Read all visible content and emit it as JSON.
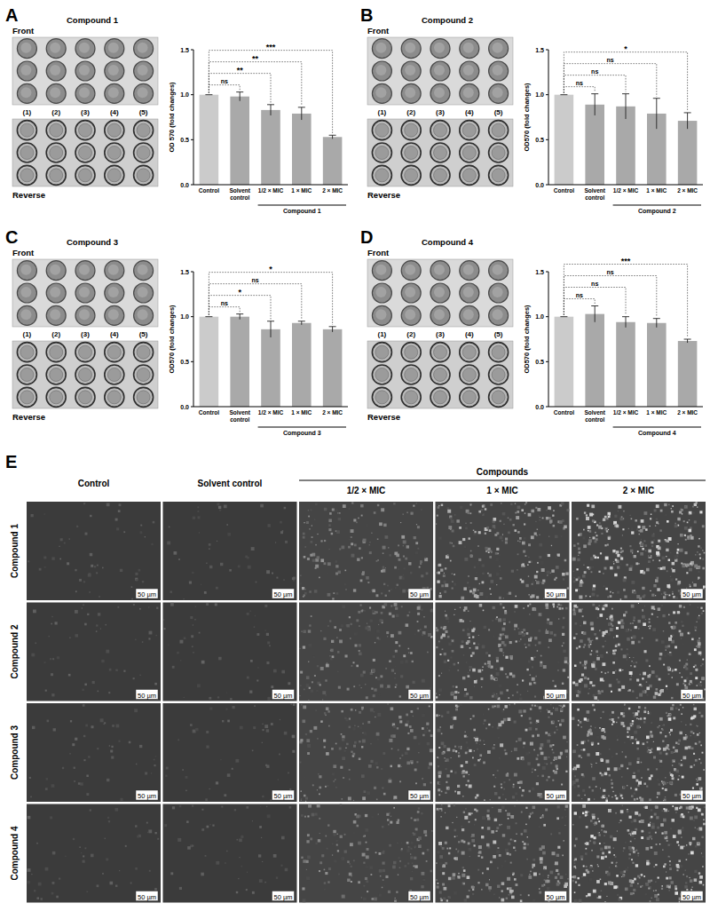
{
  "chart_data": [
    {
      "type": "bar",
      "letter": "A",
      "title": "Compound 1",
      "photo_front": "Front",
      "photo_reverse": "Reverse",
      "well_labels": [
        "(1)",
        "(2)",
        "(3)",
        "(4)",
        "(5)"
      ],
      "y_label": "OD 570 (fold changes)",
      "categories": [
        "Control",
        "Solvent control",
        "1/2 × MIC",
        "1 × MIC",
        "2 × MIC"
      ],
      "values": [
        1.0,
        0.98,
        0.83,
        0.79,
        0.53
      ],
      "errors": [
        0,
        0.05,
        0.06,
        0.07,
        0.02
      ],
      "colors": [
        "#cbcbcb",
        "#a9a9a9",
        "#a9a9a9",
        "#a9a9a9",
        "#a9a9a9"
      ],
      "group_label": "Compound 1",
      "ylim": [
        0,
        1.5
      ],
      "yticks": [
        {
          "value": 0,
          "label": "0.0"
        },
        0.5,
        {
          "value": 1,
          "label": "1.0"
        },
        1.5
      ],
      "significance": [
        {
          "from": 0,
          "to": 1,
          "label": "ns"
        },
        {
          "from": 0,
          "to": 2,
          "label": "**"
        },
        {
          "from": 0,
          "to": 3,
          "label": "**"
        },
        {
          "from": 0,
          "to": 4,
          "label": "***"
        }
      ]
    },
    {
      "type": "bar",
      "letter": "B",
      "title": "Compound 2",
      "photo_front": "Front",
      "photo_reverse": "Reverse",
      "well_labels": [
        "(1)",
        "(2)",
        "(3)",
        "(4)",
        "(5)"
      ],
      "y_label": "OD570 (fold changes)",
      "categories": [
        "Control",
        "Solvent control",
        "1/2 × MIC",
        "1 × MIC",
        "2 × MIC"
      ],
      "values": [
        1.0,
        0.89,
        0.87,
        0.79,
        0.71
      ],
      "errors": [
        0,
        0.12,
        0.14,
        0.17,
        0.09
      ],
      "colors": [
        "#cbcbcb",
        "#a9a9a9",
        "#a9a9a9",
        "#a9a9a9",
        "#a9a9a9"
      ],
      "group_label": "Compound 2",
      "ylim": [
        0,
        1.5
      ],
      "yticks": [
        {
          "value": 0,
          "label": "0.0"
        },
        0.5,
        {
          "value": 1,
          "label": "1.0"
        },
        1.5
      ],
      "significance": [
        {
          "from": 0,
          "to": 1,
          "label": "ns"
        },
        {
          "from": 0,
          "to": 2,
          "label": "ns"
        },
        {
          "from": 0,
          "to": 3,
          "label": "ns"
        },
        {
          "from": 0,
          "to": 4,
          "label": "*"
        }
      ]
    },
    {
      "type": "bar",
      "letter": "C",
      "title": "Compound 3",
      "photo_front": "Front",
      "photo_reverse": "Reverse",
      "well_labels": [
        "(1)",
        "(2)",
        "(3)",
        "(4)",
        "(5)"
      ],
      "y_label": "OD570 (fold changes)",
      "categories": [
        "Control",
        "Solvent control",
        "1/2 × MIC",
        "1 × MIC",
        "2 × MIC"
      ],
      "values": [
        1.0,
        1.0,
        0.86,
        0.93,
        0.86
      ],
      "errors": [
        0,
        0.03,
        0.09,
        0.02,
        0.03
      ],
      "colors": [
        "#cbcbcb",
        "#a9a9a9",
        "#a9a9a9",
        "#a9a9a9",
        "#a9a9a9"
      ],
      "group_label": "Compound 3",
      "ylim": [
        0,
        1.5
      ],
      "yticks": [
        {
          "value": 0,
          "label": "0.0"
        },
        0.5,
        {
          "value": 1,
          "label": "1.0"
        },
        1.5
      ],
      "significance": [
        {
          "from": 0,
          "to": 1,
          "label": "ns"
        },
        {
          "from": 0,
          "to": 2,
          "label": "*"
        },
        {
          "from": 0,
          "to": 3,
          "label": "ns"
        },
        {
          "from": 0,
          "to": 4,
          "label": "*"
        }
      ]
    },
    {
      "type": "bar",
      "letter": "D",
      "title": "Compound 4",
      "photo_front": "Front",
      "photo_reverse": "Reverse",
      "well_labels": [
        "(1)",
        "(2)",
        "(3)",
        "(4)",
        "(5)"
      ],
      "y_label": "OD570 (fold changes)",
      "categories": [
        "Control",
        "Solvent control",
        "1/2 × MIC",
        "1 × MIC",
        "2 × MIC"
      ],
      "values": [
        1.0,
        1.03,
        0.94,
        0.93,
        0.73
      ],
      "errors": [
        0,
        0.09,
        0.06,
        0.05,
        0.02
      ],
      "colors": [
        "#cbcbcb",
        "#a9a9a9",
        "#a9a9a9",
        "#a9a9a9",
        "#a9a9a9"
      ],
      "group_label": "Compound 4",
      "ylim": [
        0,
        1.5
      ],
      "yticks": [
        {
          "value": 0,
          "label": "0.0"
        },
        0.5,
        {
          "value": 1,
          "label": "1.0"
        },
        1.5
      ],
      "significance": [
        {
          "from": 0,
          "to": 1,
          "label": "ns"
        },
        {
          "from": 0,
          "to": 2,
          "label": "ns"
        },
        {
          "from": 0,
          "to": 3,
          "label": "ns"
        },
        {
          "from": 0,
          "to": 4,
          "label": "***"
        }
      ]
    }
  ],
  "panel_e": {
    "letter": "E",
    "group": "Compounds",
    "columns": [
      "Control",
      "Solvent control",
      "1/2 × MIC",
      "1 × MIC",
      "2 × MIC"
    ],
    "rows": [
      "Compound 1",
      "Compound 2",
      "Compound 3",
      "Compound 4"
    ],
    "scale_bar": "50 µm"
  }
}
